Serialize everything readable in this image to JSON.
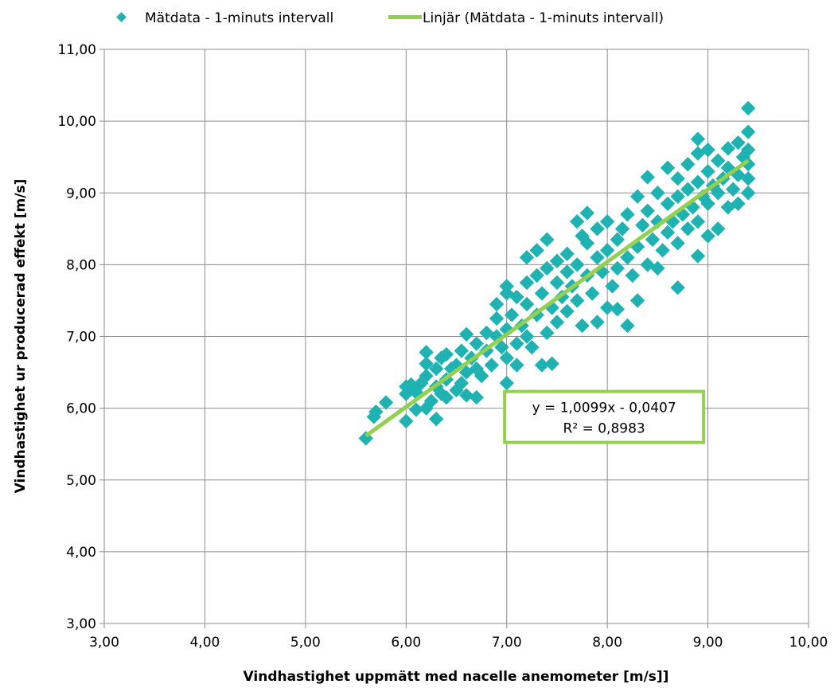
{
  "chart_data": {
    "type": "scatter",
    "xlabel": "Vindhastighet uppmätt med nacelle anemometer   [m/s]]",
    "ylabel": "Vindhastighet ur producerad effekt [m/s]",
    "xlim": [
      3,
      10
    ],
    "ylim": [
      3,
      11
    ],
    "x_ticks": [
      "3,00",
      "4,00",
      "5,00",
      "6,00",
      "7,00",
      "8,00",
      "9,00",
      "10,00"
    ],
    "y_ticks": [
      "3,00",
      "4,00",
      "5,00",
      "6,00",
      "7,00",
      "8,00",
      "9,00",
      "10,00",
      "11,00"
    ],
    "grid": true,
    "legend_position": "top",
    "colors": {
      "points": "#1fb2b2",
      "trendline": "#92d050",
      "eq_box_border": "#92d050"
    },
    "series": [
      {
        "name": "Mätdata - 1-minuts intervall",
        "type": "scatter",
        "points": [
          [
            5.6,
            5.58
          ],
          [
            5.68,
            5.88
          ],
          [
            5.7,
            5.95
          ],
          [
            5.8,
            6.08
          ],
          [
            6.0,
            5.82
          ],
          [
            6.0,
            6.2
          ],
          [
            6.0,
            6.3
          ],
          [
            6.05,
            6.33
          ],
          [
            6.1,
            5.98
          ],
          [
            6.1,
            6.22
          ],
          [
            6.15,
            6.35
          ],
          [
            6.2,
            6.0
          ],
          [
            6.2,
            6.45
          ],
          [
            6.2,
            6.62
          ],
          [
            6.2,
            6.78
          ],
          [
            6.25,
            6.1
          ],
          [
            6.3,
            5.85
          ],
          [
            6.3,
            6.3
          ],
          [
            6.3,
            6.55
          ],
          [
            6.35,
            6.2
          ],
          [
            6.35,
            6.7
          ],
          [
            6.4,
            6.15
          ],
          [
            6.4,
            6.4
          ],
          [
            6.4,
            6.75
          ],
          [
            6.45,
            6.55
          ],
          [
            6.5,
            6.25
          ],
          [
            6.5,
            6.6
          ],
          [
            6.55,
            6.35
          ],
          [
            6.55,
            6.8
          ],
          [
            6.6,
            6.18
          ],
          [
            6.6,
            6.5
          ],
          [
            6.6,
            7.03
          ],
          [
            6.65,
            6.7
          ],
          [
            6.7,
            6.15
          ],
          [
            6.7,
            6.55
          ],
          [
            6.7,
            6.9
          ],
          [
            6.75,
            6.45
          ],
          [
            6.8,
            6.8
          ],
          [
            6.8,
            7.05
          ],
          [
            6.85,
            6.6
          ],
          [
            6.9,
            7.0
          ],
          [
            6.9,
            7.25
          ],
          [
            6.9,
            7.45
          ],
          [
            6.95,
            6.85
          ],
          [
            7.0,
            6.35
          ],
          [
            7.0,
            6.7
          ],
          [
            7.0,
            7.1
          ],
          [
            7.0,
            7.6
          ],
          [
            7.0,
            7.7
          ],
          [
            7.05,
            7.3
          ],
          [
            7.1,
            6.9
          ],
          [
            7.1,
            7.55
          ],
          [
            7.1,
            6.6
          ],
          [
            7.15,
            7.15
          ],
          [
            7.2,
            7.0
          ],
          [
            7.2,
            7.45
          ],
          [
            7.2,
            7.75
          ],
          [
            7.2,
            8.1
          ],
          [
            7.25,
            6.85
          ],
          [
            7.3,
            7.3
          ],
          [
            7.3,
            7.85
          ],
          [
            7.3,
            8.2
          ],
          [
            7.35,
            6.6
          ],
          [
            7.35,
            7.6
          ],
          [
            7.4,
            7.05
          ],
          [
            7.4,
            7.95
          ],
          [
            7.4,
            8.35
          ],
          [
            7.45,
            6.62
          ],
          [
            7.45,
            7.4
          ],
          [
            7.5,
            7.75
          ],
          [
            7.5,
            8.05
          ],
          [
            7.5,
            7.2
          ],
          [
            7.55,
            7.55
          ],
          [
            7.6,
            7.9
          ],
          [
            7.6,
            8.15
          ],
          [
            7.6,
            7.35
          ],
          [
            7.65,
            7.7
          ],
          [
            7.7,
            7.5
          ],
          [
            7.7,
            8.0
          ],
          [
            7.7,
            8.6
          ],
          [
            7.75,
            8.4
          ],
          [
            7.75,
            7.15
          ],
          [
            7.8,
            7.85
          ],
          [
            7.8,
            8.3
          ],
          [
            7.8,
            8.72
          ],
          [
            7.85,
            7.6
          ],
          [
            7.9,
            7.2
          ],
          [
            7.9,
            8.1
          ],
          [
            7.9,
            8.5
          ],
          [
            7.95,
            7.9
          ],
          [
            8.0,
            7.4
          ],
          [
            8.0,
            8.2
          ],
          [
            8.0,
            8.6
          ],
          [
            8.05,
            7.7
          ],
          [
            8.1,
            7.95
          ],
          [
            8.1,
            8.35
          ],
          [
            8.1,
            7.38
          ],
          [
            8.15,
            8.5
          ],
          [
            8.2,
            7.15
          ],
          [
            8.2,
            8.1
          ],
          [
            8.2,
            8.7
          ],
          [
            8.25,
            7.85
          ],
          [
            8.3,
            7.5
          ],
          [
            8.3,
            8.25
          ],
          [
            8.3,
            8.95
          ],
          [
            8.35,
            8.55
          ],
          [
            8.4,
            8.0
          ],
          [
            8.4,
            8.75
          ],
          [
            8.4,
            9.22
          ],
          [
            8.45,
            8.35
          ],
          [
            8.5,
            7.95
          ],
          [
            8.5,
            8.6
          ],
          [
            8.5,
            9.0
          ],
          [
            8.55,
            8.2
          ],
          [
            8.6,
            8.45
          ],
          [
            8.6,
            8.85
          ],
          [
            8.6,
            9.35
          ],
          [
            8.65,
            8.6
          ],
          [
            8.7,
            7.68
          ],
          [
            8.7,
            8.3
          ],
          [
            8.7,
            8.95
          ],
          [
            8.7,
            9.2
          ],
          [
            8.75,
            8.7
          ],
          [
            8.8,
            8.5
          ],
          [
            8.8,
            9.05
          ],
          [
            8.8,
            9.4
          ],
          [
            8.85,
            8.8
          ],
          [
            8.9,
            8.12
          ],
          [
            8.9,
            8.6
          ],
          [
            8.9,
            9.15
          ],
          [
            8.9,
            9.55
          ],
          [
            8.9,
            9.75
          ],
          [
            8.95,
            8.95
          ],
          [
            9.0,
            8.4
          ],
          [
            9.0,
            8.85
          ],
          [
            9.0,
            9.3
          ],
          [
            9.0,
            9.6
          ],
          [
            9.05,
            9.1
          ],
          [
            9.1,
            8.5
          ],
          [
            9.1,
            9.0
          ],
          [
            9.1,
            9.45
          ],
          [
            9.15,
            9.2
          ],
          [
            9.2,
            8.8
          ],
          [
            9.2,
            9.35
          ],
          [
            9.2,
            9.62
          ],
          [
            9.25,
            9.05
          ],
          [
            9.3,
            8.85
          ],
          [
            9.3,
            9.25
          ],
          [
            9.3,
            9.7
          ],
          [
            9.35,
            9.5
          ],
          [
            9.4,
            9.0
          ],
          [
            9.4,
            9.2
          ],
          [
            9.4,
            9.4
          ],
          [
            9.4,
            9.6
          ],
          [
            9.4,
            9.85
          ],
          [
            9.4,
            10.18
          ]
        ]
      },
      {
        "name": "Linjär (Mätdata - 1-minuts intervall)",
        "type": "line",
        "slope": 1.0099,
        "intercept": -0.0407,
        "x_range": [
          5.6,
          9.4
        ]
      }
    ],
    "annotation": {
      "line1": "y = 1,0099x - 0,0407",
      "line2": "R² = 0,8983",
      "anchor_x": 8.0,
      "anchor_y": 6.0
    }
  }
}
